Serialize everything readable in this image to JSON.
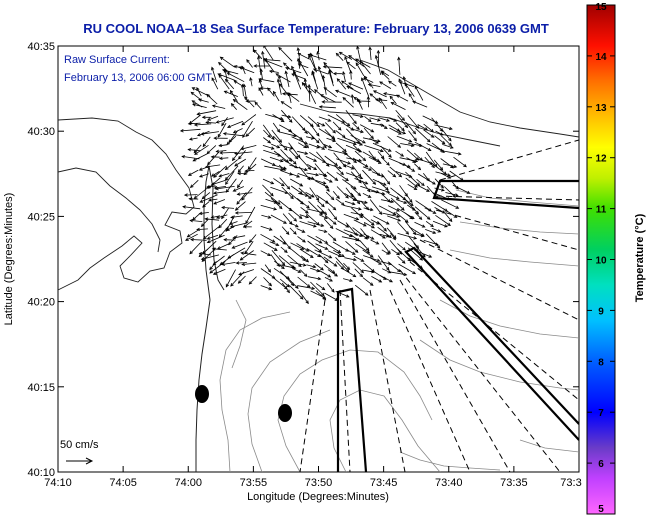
{
  "header": {
    "title": "RU COOL  NOAA–18  Sea Surface Temperature:  February 13, 2006 0639 GMT"
  },
  "legend": {
    "line1": "Raw Surface Current:",
    "line2": "February 13, 2006 06:00 GMT",
    "scale_label": "50 cm/s"
  },
  "axes": {
    "xlabel": "Longitude (Degrees:Minutes)",
    "ylabel": "Latitude (Degrees:Minutes)",
    "x_ticks": [
      "74:10",
      "74:05",
      "74:00",
      "73:55",
      "73:50",
      "73:45",
      "73:40",
      "73:35",
      "73:3"
    ],
    "y_ticks": [
      "40:35",
      "40:30",
      "40:25",
      "40:20",
      "40:15",
      "40:10"
    ]
  },
  "colorbar": {
    "label": "Temperature (°C)",
    "ticks": [
      "15",
      "14",
      "13",
      "12",
      "11",
      "10",
      "9",
      "8",
      "7",
      "6",
      "5"
    ],
    "min": 5,
    "max": 15
  },
  "colors": {
    "title": "#0b1ea8",
    "legend_text": "#0b1ea8"
  }
}
